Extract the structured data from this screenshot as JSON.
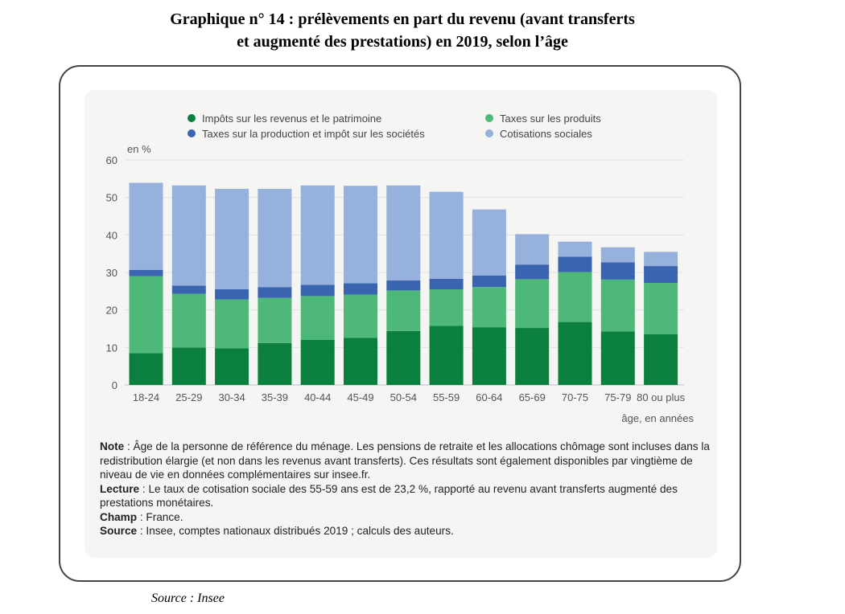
{
  "page": {
    "title_line1": "Graphique n° 14 : prélèvements en part du revenu (avant transferts",
    "title_line2": "et augmenté des prestations) en 2019, selon l’âge",
    "footer_source": "Source : Insee"
  },
  "notes": {
    "note_label": "Note",
    "note_text": " : Âge de la personne de référence du ménage. Les pensions de retraite et les allocations chômage sont incluses dans la redistribution élargie (et non dans les revenus avant transferts). Ces résultats sont également disponibles par vingtième de niveau de vie en données complémentaires sur insee.fr.",
    "lecture_label": "Lecture",
    "lecture_text": " : Le taux de cotisation sociale des 55-59 ans est de 23,2 %, rapporté au revenu avant transferts augmenté des prestations monétaires.",
    "champ_label": "Champ",
    "champ_text": " : France.",
    "source_label": "Source",
    "source_text": " : Insee, comptes nationaux distribués 2019 ; calculs des auteurs."
  },
  "chart_data": {
    "type": "bar",
    "stacked": true,
    "title": "",
    "ylabel": "en %",
    "xlabel": "âge, en années",
    "ylim": [
      0,
      60
    ],
    "yticks": [
      0,
      10,
      20,
      30,
      40,
      50,
      60
    ],
    "grid": true,
    "legend_position": "top",
    "categories": [
      "18-24",
      "25-29",
      "30-34",
      "35-39",
      "40-44",
      "45-49",
      "50-54",
      "55-59",
      "60-64",
      "65-69",
      "70-75",
      "75-79",
      "80 ou plus"
    ],
    "series": [
      {
        "name": "Impôts sur les revenus et le patrimoine",
        "color": "#0a7f3e",
        "values": [
          8.5,
          10.0,
          9.8,
          11.2,
          12.0,
          12.6,
          14.4,
          15.8,
          15.4,
          15.2,
          16.8,
          14.3,
          13.5
        ]
      },
      {
        "name": "Taxes sur les produits",
        "color": "#4eb878",
        "values": [
          20.5,
          14.3,
          13.0,
          12.0,
          11.7,
          11.5,
          10.8,
          9.7,
          10.7,
          13.0,
          13.3,
          13.8,
          13.7
        ]
      },
      {
        "name": "Taxes sur la production et impôt sur les sociétés",
        "color": "#3a64b0",
        "values": [
          1.7,
          2.2,
          2.7,
          2.9,
          3.0,
          3.0,
          2.7,
          2.8,
          3.1,
          3.9,
          4.1,
          4.6,
          4.5
        ]
      },
      {
        "name": "Cotisations sociales",
        "color": "#96b1dc",
        "values": [
          23.2,
          26.7,
          26.8,
          26.2,
          26.5,
          26.0,
          25.3,
          23.2,
          17.6,
          8.1,
          4.0,
          4.0,
          3.8
        ]
      }
    ]
  }
}
